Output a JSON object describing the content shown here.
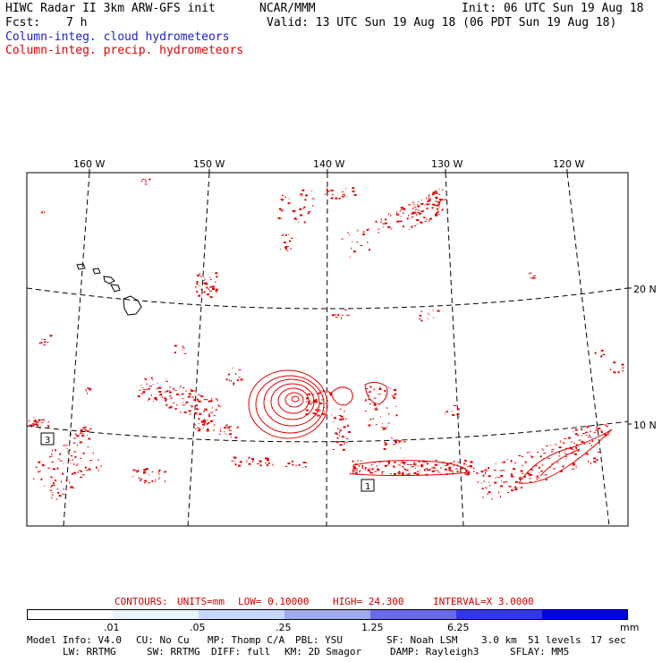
{
  "header": {
    "title": "HIWC Radar II 3km ARW-GFS init",
    "org": "NCAR/MMM",
    "init": "Init: 06 UTC Sun 19 Aug 18",
    "fcst_label": "Fcst:",
    "fcst_value": "7 h",
    "valid": "Valid: 13 UTC Sun 19 Aug 18 (06 PDT Sun 19 Aug 18)",
    "field1": "Column-integ. cloud hydrometeors",
    "field2": "Column-integ. precip. hydrometeors",
    "field1_color": "#2020d0",
    "field2_color": "#e00000"
  },
  "map": {
    "lon_labels": [
      "160 W",
      "150 W",
      "140 W",
      "130 W",
      "120 W"
    ],
    "lat_labels": [
      "20 N",
      "10 N"
    ],
    "box_labels": [
      "3",
      "1"
    ],
    "precip_color": "#e00000"
  },
  "contours": {
    "label": "CONTOURS:",
    "units": "UNITS=mm",
    "low": "LOW= 0.10000",
    "high": "HIGH= 24.300",
    "interval": "INTERVAL=X 3.0000",
    "color": "#d00000"
  },
  "colorbar": {
    "ticks": [
      ".01",
      ".05",
      ".25",
      "1.25",
      "6.25"
    ],
    "unit": "mm",
    "colors": [
      "#ffffff",
      "#e8f4ff",
      "#c8d8ff",
      "#a0a8f0",
      "#6a6af0",
      "#3434f0",
      "#0000e6"
    ]
  },
  "footer": {
    "line1": [
      "Model Info: V4.0",
      "CU: No Cu",
      "MP: Thomp C/A",
      "PBL: YSU",
      "SF: Noah LSM",
      "3.0 km",
      "51 levels",
      "17 sec"
    ],
    "line2": [
      "LW: RRTMG",
      "SW: RRTMG",
      "DIFF: full",
      "KM: 2D Smagor",
      "DAMP: Rayleigh3",
      "SFLAY: MM5"
    ]
  }
}
